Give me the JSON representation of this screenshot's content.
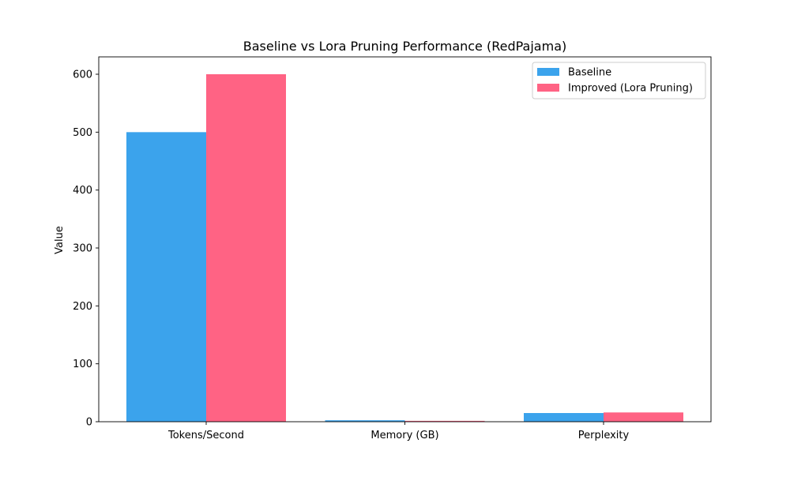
{
  "chart_data": {
    "type": "bar",
    "title": "Baseline vs Lora Pruning Performance (RedPajama)",
    "xlabel": "",
    "ylabel": "Value",
    "categories": [
      "Tokens/Second",
      "Memory (GB)",
      "Perplexity"
    ],
    "series": [
      {
        "name": "Baseline",
        "values": [
          500,
          2.5,
          15
        ],
        "color": "#3BA3EC"
      },
      {
        "name": "Improved (Lora Pruning)",
        "values": [
          600,
          1.5,
          16
        ],
        "color": "#FF6384"
      }
    ],
    "ylim": [
      0,
      630
    ],
    "yticks": [
      0,
      100,
      200,
      300,
      400,
      500,
      600
    ],
    "grid": false,
    "legend_position": "top-right"
  }
}
